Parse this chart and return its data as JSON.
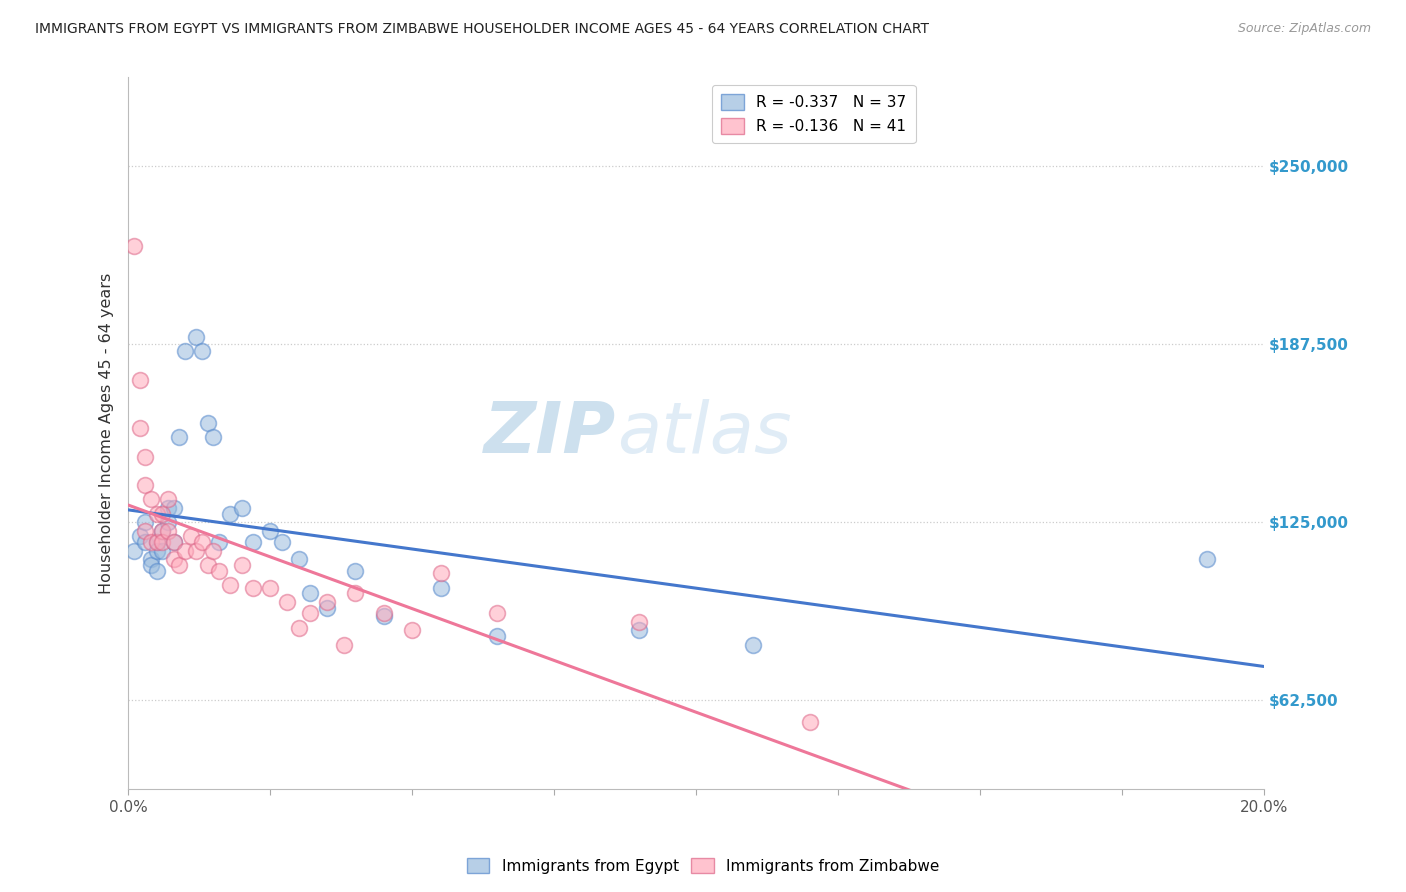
{
  "title": "IMMIGRANTS FROM EGYPT VS IMMIGRANTS FROM ZIMBABWE HOUSEHOLDER INCOME AGES 45 - 64 YEARS CORRELATION CHART",
  "source": "Source: ZipAtlas.com",
  "xlabel_tick_vals": [
    0.0,
    0.025,
    0.05,
    0.075,
    0.1,
    0.125,
    0.15,
    0.175,
    0.2
  ],
  "xlabel_edge_labels": {
    "0": "0.0%",
    "8": "20.0%"
  },
  "ylabel_ticks": [
    "$62,500",
    "$125,000",
    "$187,500",
    "$250,000"
  ],
  "ylabel_tick_vals": [
    62500,
    125000,
    187500,
    250000
  ],
  "ylabel_label": "Householder Income Ages 45 - 64 years",
  "xmin": 0.0,
  "xmax": 0.2,
  "ymin": 31250,
  "ymax": 281250,
  "watermark_zip": "ZIP",
  "watermark_atlas": "atlas",
  "legend_egypt_R": "R = -0.337",
  "legend_egypt_N": "N = 37",
  "legend_zimbabwe_R": "R = -0.136",
  "legend_zimbabwe_N": "N = 41",
  "color_egypt": "#99bbdd",
  "color_zimbabwe": "#ffaabb",
  "color_edge_egypt": "#5588cc",
  "color_edge_zimbabwe": "#dd6688",
  "color_line_egypt": "#4477cc",
  "color_line_zimbabwe": "#ee7799",
  "egypt_x": [
    0.001,
    0.002,
    0.003,
    0.003,
    0.004,
    0.004,
    0.005,
    0.005,
    0.005,
    0.006,
    0.006,
    0.007,
    0.007,
    0.008,
    0.008,
    0.009,
    0.01,
    0.012,
    0.013,
    0.014,
    0.015,
    0.016,
    0.018,
    0.02,
    0.022,
    0.025,
    0.027,
    0.03,
    0.032,
    0.035,
    0.04,
    0.045,
    0.055,
    0.065,
    0.09,
    0.11,
    0.19
  ],
  "egypt_y": [
    115000,
    120000,
    125000,
    118000,
    112000,
    110000,
    118000,
    115000,
    108000,
    122000,
    115000,
    125000,
    130000,
    130000,
    118000,
    155000,
    185000,
    190000,
    185000,
    160000,
    155000,
    118000,
    128000,
    130000,
    118000,
    122000,
    118000,
    112000,
    100000,
    95000,
    108000,
    92000,
    102000,
    85000,
    87000,
    82000,
    112000
  ],
  "zimbabwe_x": [
    0.001,
    0.002,
    0.002,
    0.003,
    0.003,
    0.003,
    0.004,
    0.004,
    0.005,
    0.005,
    0.006,
    0.006,
    0.006,
    0.007,
    0.007,
    0.008,
    0.008,
    0.009,
    0.01,
    0.011,
    0.012,
    0.013,
    0.014,
    0.015,
    0.016,
    0.018,
    0.02,
    0.022,
    0.025,
    0.028,
    0.03,
    0.032,
    0.035,
    0.038,
    0.04,
    0.045,
    0.05,
    0.055,
    0.065,
    0.09,
    0.12
  ],
  "zimbabwe_y": [
    222000,
    175000,
    158000,
    148000,
    138000,
    122000,
    133000,
    118000,
    128000,
    118000,
    128000,
    122000,
    118000,
    133000,
    122000,
    118000,
    112000,
    110000,
    115000,
    120000,
    115000,
    118000,
    110000,
    115000,
    108000,
    103000,
    110000,
    102000,
    102000,
    97000,
    88000,
    93000,
    97000,
    82000,
    100000,
    93000,
    87000,
    107000,
    93000,
    90000,
    55000
  ]
}
